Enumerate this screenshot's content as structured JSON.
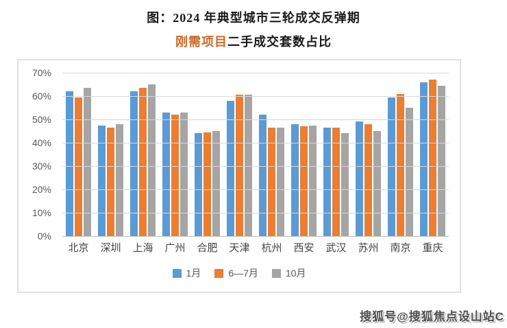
{
  "title": {
    "line1": "图：2024 年典型城市三轮成交反弹期",
    "line2_highlight": "刚需项目",
    "line2_rest": "二手成交套数占比",
    "highlight_color": "#cf6a28"
  },
  "chart_data": {
    "type": "bar",
    "title": "2024 年典型城市三轮成交反弹期 刚需项目二手成交套数占比",
    "categories": [
      "北京",
      "深圳",
      "上海",
      "广州",
      "合肥",
      "天津",
      "杭州",
      "西安",
      "武汉",
      "苏州",
      "南京",
      "重庆"
    ],
    "series": [
      {
        "name": "1月",
        "color": "#5b9bd5",
        "values": [
          62,
          47.5,
          62,
          53,
          44,
          58,
          52,
          48,
          46.5,
          49,
          59.5,
          66
        ]
      },
      {
        "name": "6—7月",
        "color": "#ed7d31",
        "values": [
          59.5,
          46.5,
          63.5,
          52,
          44.5,
          60.5,
          46.5,
          47,
          46.5,
          48,
          61,
          67
        ]
      },
      {
        "name": "10月",
        "color": "#a5a5a5",
        "values": [
          63.5,
          48,
          65,
          53,
          45,
          60.5,
          46.5,
          47.5,
          44,
          45,
          55,
          64.5
        ]
      }
    ],
    "ylabel": "",
    "xlabel": "",
    "ylim": [
      0,
      70
    ],
    "y_ticks": [
      "70%",
      "60%",
      "50%",
      "40%",
      "30%",
      "20%",
      "10%",
      "0%"
    ],
    "grid": true,
    "legend_position": "bottom"
  },
  "watermark": "搜狐号@搜狐焦点设山站C"
}
